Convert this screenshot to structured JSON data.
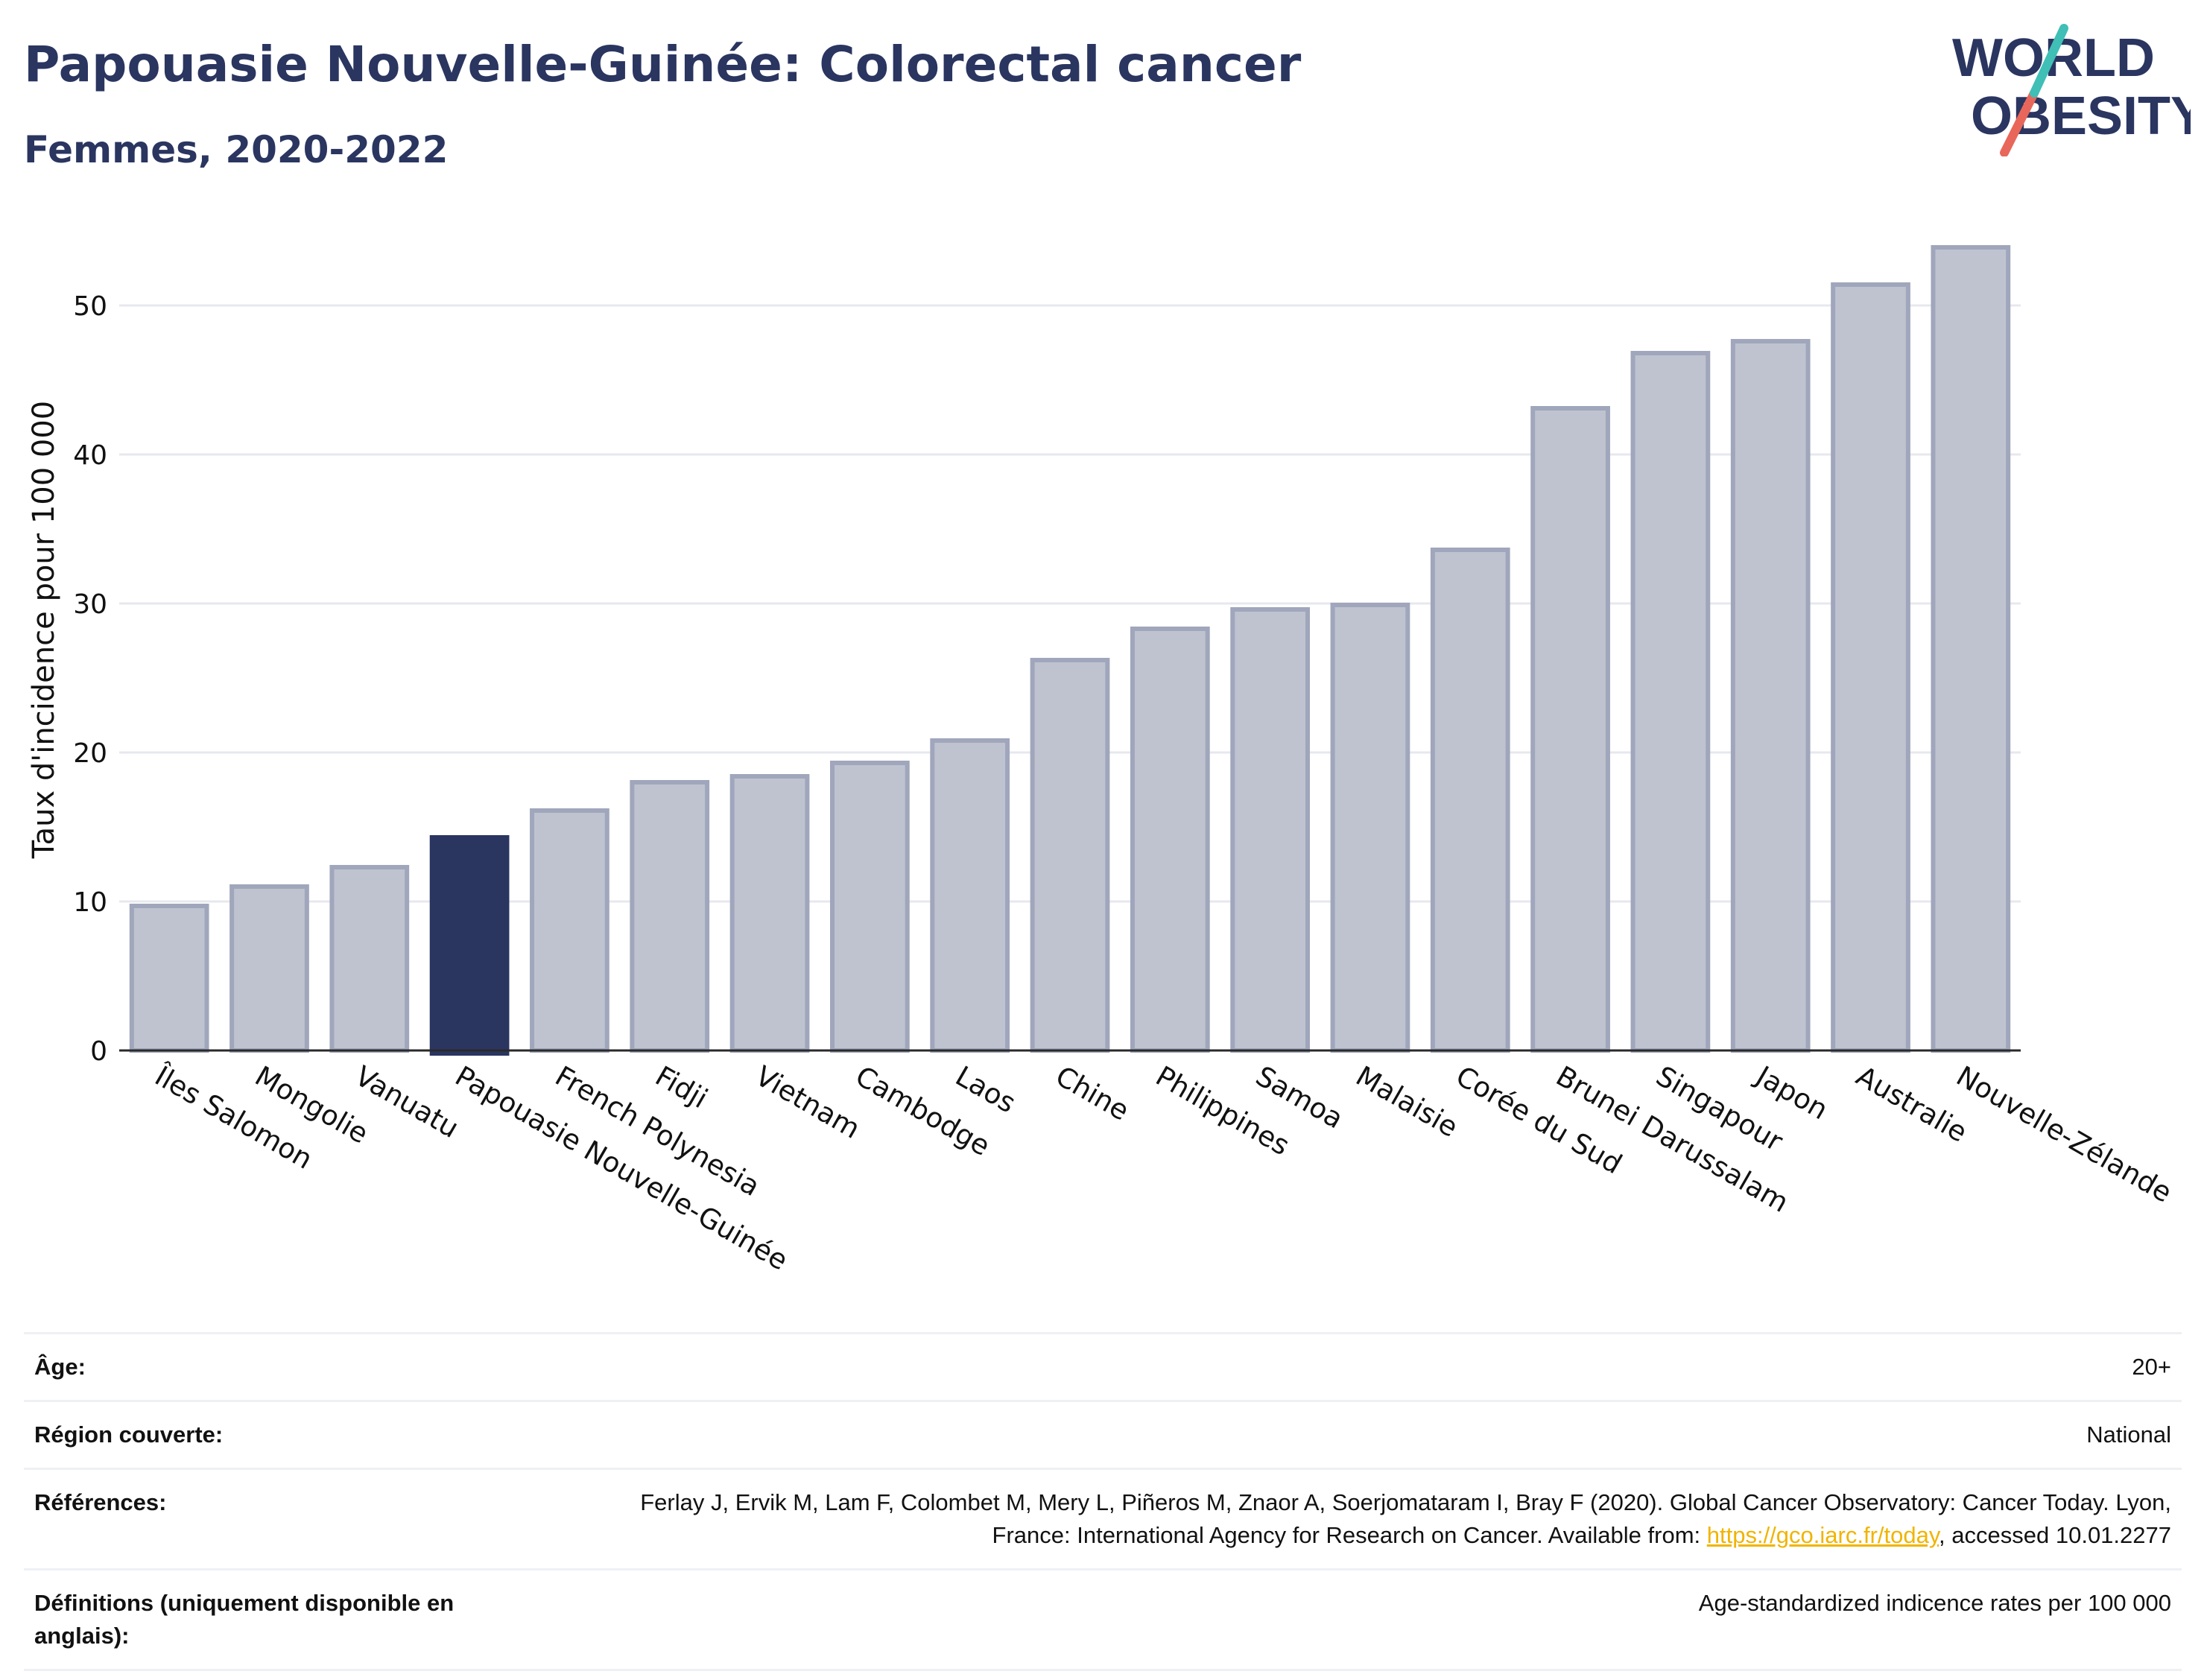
{
  "header": {
    "title": "Papouasie Nouvelle-Guinée: Colorectal cancer",
    "subtitle": "Femmes, 2020-2022"
  },
  "logo": {
    "line1": "WORLD",
    "line2": "OBESITY"
  },
  "colors": {
    "highlight": "#2a3560",
    "bar_fill": "#bfc3d0",
    "bar_stroke": "#a0a6bb",
    "axis": "#2a2a2a",
    "grid": "#e6e8ee",
    "link": "#f0b400",
    "logo_teal": "#3fbfb5",
    "logo_red": "#e8675a"
  },
  "chart_data": {
    "type": "bar",
    "ylabel": "Taux d'incidence pour 100 000",
    "xlabel": "",
    "ylim": [
      0,
      55
    ],
    "yticks": [
      0,
      10,
      20,
      30,
      40,
      50
    ],
    "grid": true,
    "highlight_category": "Papouasie Nouvelle-Guinée",
    "categories": [
      "Îles Salomon",
      "Mongolie",
      "Vanuatu",
      "Papouasie Nouvelle-Guinée",
      "French Polynesia",
      "Fidji",
      "Vietnam",
      "Cambodge",
      "Laos",
      "Chine",
      "Philippines",
      "Samoa",
      "Malaisie",
      "Corée du Sud",
      "Brunei Darussalam",
      "Singapour",
      "Japon",
      "Australie",
      "Nouvelle-Zélande"
    ],
    "values": [
      9.7,
      11.0,
      12.3,
      14.3,
      16.1,
      18.0,
      18.4,
      19.3,
      20.8,
      26.2,
      28.3,
      29.6,
      29.9,
      33.6,
      43.1,
      46.8,
      47.6,
      51.4,
      53.9
    ]
  },
  "meta": {
    "age_label": "Âge:",
    "age_value": "20+",
    "region_label": "Région couverte:",
    "region_value": "National",
    "references_label": "Références:",
    "references_text_before": "Ferlay J, Ervik M, Lam F, Colombet M, Mery L, Piñeros M, Znaor A, Soerjomataram I, Bray F (2020). Global Cancer Observatory: Cancer Today. Lyon, France: International Agency for Research on Cancer. Available from: ",
    "references_link": "https://gco.iarc.fr/today",
    "references_text_after": ", accessed 10.01.2277",
    "definitions_label": "Définitions (uniquement disponible en anglais):",
    "definitions_value": "Age-standardized indicence rates per 100 000"
  }
}
